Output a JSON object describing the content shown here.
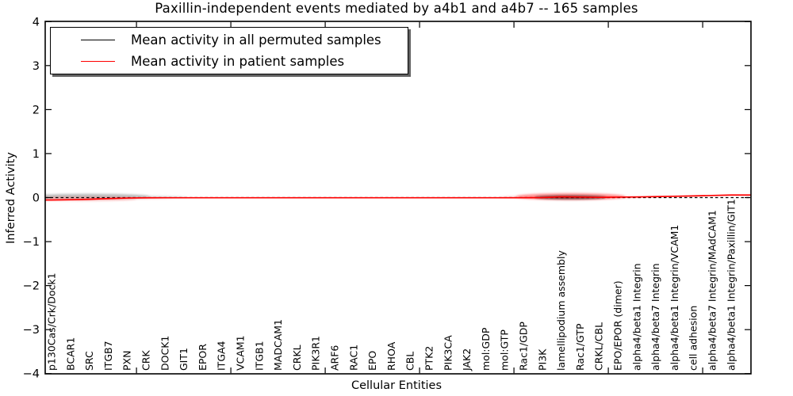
{
  "figure": {
    "background": "#ffffff",
    "text_color": "#000000"
  },
  "chart_data": {
    "type": "line",
    "title": "Paxillin-independent events mediated by a4b1 and a4b7 -- 165 samples",
    "xlabel": "Cellular Entities",
    "ylabel": "Inferred Activity",
    "ylim": [
      -4,
      4
    ],
    "yticks": [
      -4,
      -3,
      -2,
      -1,
      0,
      1,
      2,
      3,
      4
    ],
    "grid": false,
    "legend_position": "upper left",
    "legend_shadow": true,
    "categories": [
      "p130Cas/Crk/Dock1",
      "BCAR1",
      "SRC",
      "ITGB7",
      "PXN",
      "CRK",
      "DOCK1",
      "GIT1",
      "EPOR",
      "ITGA4",
      "VCAM1",
      "ITGB1",
      "MADCAM1",
      "CRKL",
      "PIK3R1",
      "ARF6",
      "RAC1",
      "EPO",
      "RHOA",
      "CBL",
      "PTK2",
      "PIK3CA",
      "JAK2",
      "mol:GDP",
      "mol:GTP",
      "Rac1/GDP",
      "PI3K",
      "lamellipodium assembly",
      "Rac1/GTP",
      "CRKL/CBL",
      "EPO/EPOR (dimer)",
      "alpha4/beta1 Integrin",
      "alpha4/beta7 Integrin",
      "alpha4/beta1 Integrin/VCAM1",
      "cell adhesion",
      "alpha4/beta7 Integrin/MAdCAM1",
      "alpha4/beta1 Integrin/Paxillin/GIT1"
    ],
    "series": [
      {
        "name": "Mean activity in all permuted samples",
        "color": "#000000",
        "style": "dashed",
        "values": [
          0,
          0,
          0,
          0,
          0,
          0,
          0,
          0,
          0,
          0,
          0,
          0,
          0,
          0,
          0,
          0,
          0,
          0,
          0,
          0,
          0,
          0,
          0,
          0,
          0,
          0,
          0,
          0,
          0,
          0,
          0,
          0,
          0,
          0,
          0,
          0,
          0
        ]
      },
      {
        "name": "Mean activity in patient samples",
        "color": "#ff0000",
        "style": "solid",
        "values": [
          -0.055,
          -0.048,
          -0.038,
          -0.022,
          -0.01,
          -0.005,
          -0.003,
          -0.003,
          -0.003,
          -0.003,
          -0.003,
          -0.003,
          -0.003,
          -0.003,
          -0.003,
          -0.003,
          -0.003,
          -0.003,
          -0.003,
          -0.003,
          -0.003,
          -0.003,
          -0.003,
          -0.003,
          -0.003,
          -0.003,
          0.0,
          0.018,
          0.012,
          0.006,
          0.01,
          0.015,
          0.022,
          0.03,
          0.038,
          0.048,
          0.058
        ]
      }
    ],
    "spread_bands": [
      {
        "label": "permuted-spread-left-core",
        "center": 2.0,
        "half_width": 3.2,
        "above": 0.09,
        "below": 0.035,
        "color": "#8a8a8a",
        "opacity": 0.5
      },
      {
        "label": "permuted-spread-left-tail",
        "center": 3.0,
        "half_width": 4.2,
        "above": 0.05,
        "below": 0.02,
        "color": "#aaaaaa",
        "opacity": 0.4
      },
      {
        "label": "patient-spread-left-core",
        "center": 1.5,
        "half_width": 3.0,
        "above": 0.015,
        "below": 0.075,
        "color": "#ff7777",
        "opacity": 0.45
      },
      {
        "label": "patient-spread-left-tail",
        "center": 2.5,
        "half_width": 4.0,
        "above": 0.008,
        "below": 0.04,
        "color": "#ffaaaa",
        "opacity": 0.4
      },
      {
        "label": "patient-spread-lamellipodium-core",
        "center": 27.5,
        "half_width": 2.9,
        "above": 0.1,
        "below": 0.055,
        "color": "#ff3333",
        "opacity": 0.5
      },
      {
        "label": "patient-spread-lamellipodium-tail",
        "center": 27.5,
        "half_width": 3.8,
        "above": 0.05,
        "below": 0.03,
        "color": "#ff8888",
        "opacity": 0.4
      },
      {
        "label": "permuted-spread-lamellipodium",
        "center": 27.5,
        "half_width": 1.9,
        "above": 0.045,
        "below": 0.035,
        "color": "#111111",
        "opacity": 0.65
      }
    ]
  }
}
